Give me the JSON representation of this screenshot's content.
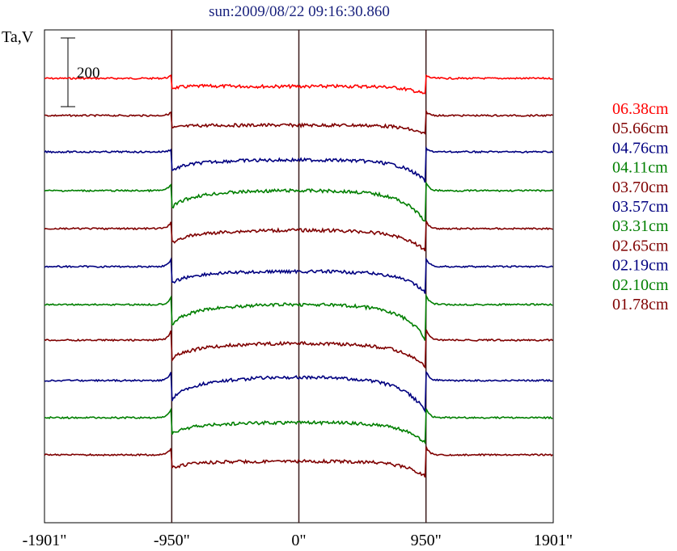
{
  "chart_data": {
    "type": "line",
    "title": "sun:2009/08/22 09:16:30.860",
    "ylabel": "Ta,V",
    "xlabel": "",
    "x_ticks": [
      "-1901\"",
      "-950\"",
      "0\"",
      "950\"",
      "1901\""
    ],
    "x_tick_values": [
      -1901,
      -950,
      0,
      950,
      1901
    ],
    "xlim": [
      -1901,
      1901
    ],
    "vertical_lines": [
      -950,
      0,
      950
    ],
    "scale_bar": {
      "label": "200",
      "value": 200
    },
    "series": [
      {
        "name": "06.38cm",
        "color": "#ff0000",
        "baseline": 97,
        "dip_edge": 8,
        "dip_limb": 12,
        "bump": 4,
        "cap": -2,
        "out_bump": 4
      },
      {
        "name": "05.66cm",
        "color": "#7f0000",
        "baseline": 143,
        "dip_edge": 12,
        "dip_limb": 12,
        "bump": 10,
        "cap": 0,
        "out_bump": 5
      },
      {
        "name": "04.76cm",
        "color": "#000080",
        "baseline": 188,
        "dip_edge": 18,
        "dip_limb": 20,
        "bump": 10,
        "cap": 8,
        "out_bump": 4
      },
      {
        "name": "04.11cm",
        "color": "#007f00",
        "baseline": 236,
        "dip_edge": 14,
        "dip_limb": 28,
        "bump": 8,
        "cap": 14,
        "out_bump": 10
      },
      {
        "name": "03.70cm",
        "color": "#7f0000",
        "baseline": 283,
        "dip_edge": 14,
        "dip_limb": 16,
        "bump": 6,
        "cap": 12,
        "out_bump": 10
      },
      {
        "name": "03.57cm",
        "color": "#000080",
        "baseline": 330,
        "dip_edge": 16,
        "dip_limb": 18,
        "bump": 6,
        "cap": 10,
        "out_bump": 10
      },
      {
        "name": "03.31cm",
        "color": "#007f00",
        "baseline": 377,
        "dip_edge": 18,
        "dip_limb": 28,
        "bump": 6,
        "cap": 18,
        "out_bump": 12
      },
      {
        "name": "02.65cm",
        "color": "#7f0000",
        "baseline": 421,
        "dip_edge": 20,
        "dip_limb": 16,
        "bump": 6,
        "cap": 16,
        "out_bump": 14
      },
      {
        "name": "02.19cm",
        "color": "#000080",
        "baseline": 471,
        "dip_edge": 18,
        "dip_limb": 24,
        "bump": 10,
        "cap": 22,
        "out_bump": 12
      },
      {
        "name": "02.10cm",
        "color": "#007f00",
        "baseline": 517,
        "dip_edge": 16,
        "dip_limb": 18,
        "bump": 8,
        "cap": 10,
        "out_bump": 12
      },
      {
        "name": "01.78cm",
        "color": "#7f0000",
        "baseline": 563,
        "dip_edge": 12,
        "dip_limb": 16,
        "bump": 10,
        "cap": 4,
        "out_bump": 10
      }
    ]
  }
}
